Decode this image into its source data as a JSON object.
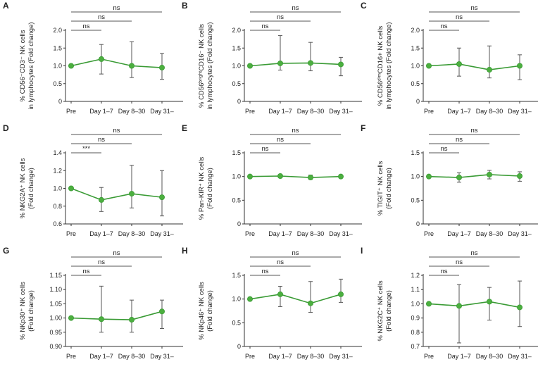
{
  "figure": {
    "categories": [
      "Pre",
      "Day 1–7",
      "Day 8–30",
      "Day 31–"
    ],
    "line_color": "#3a9b35",
    "marker_color": "#4caf3f",
    "errorbar_color": "#555555",
    "bracket_color": "#555555"
  },
  "chart_data": [
    {
      "panel": "A",
      "type": "line",
      "ylabel_lines": [
        "% CD56⁻CD3⁻ NK cells",
        "in lymphocytes (Fold change)"
      ],
      "ylim": [
        0,
        2.0
      ],
      "yticks": [
        "0",
        "0.5",
        "1.0",
        "1.5",
        "2.0"
      ],
      "categories": [
        "Pre",
        "Day 1–7",
        "Day 8–30",
        "Day 31–"
      ],
      "values": [
        1.0,
        1.19,
        1.0,
        0.95
      ],
      "error_low": [
        1.0,
        0.77,
        0.67,
        0.62
      ],
      "error_high": [
        1.0,
        1.6,
        1.68,
        1.35
      ],
      "comparisons": [
        {
          "label": "ns",
          "from": 0,
          "to": 1
        },
        {
          "label": "ns",
          "from": 0,
          "to": 2
        },
        {
          "label": "ns",
          "from": 0,
          "to": 3
        }
      ]
    },
    {
      "panel": "B",
      "type": "line",
      "ylabel_lines": [
        "% CD56ᵇʳⁱᵍʰᵗCD16⁻ NK cells",
        "in lymphocytes (Fold change)"
      ],
      "ylim": [
        0,
        2.0
      ],
      "yticks": [
        "0",
        "0.5",
        "1.0",
        "1.5",
        "2.0"
      ],
      "categories": [
        "Pre",
        "Day 1–7",
        "Day 8–30",
        "Day 31–"
      ],
      "values": [
        1.0,
        1.07,
        1.08,
        1.04
      ],
      "error_low": [
        1.0,
        0.88,
        0.86,
        0.72
      ],
      "error_high": [
        1.0,
        1.85,
        1.66,
        1.24
      ],
      "comparisons": [
        {
          "label": "ns",
          "from": 0,
          "to": 1
        },
        {
          "label": "ns",
          "from": 0,
          "to": 2
        },
        {
          "label": "ns",
          "from": 0,
          "to": 3
        }
      ]
    },
    {
      "panel": "C",
      "type": "line",
      "ylabel_lines": [
        "% CD56ᵈⁱᵐCD16+ NK cells",
        "in lymphocytes (Fold change)"
      ],
      "ylim": [
        0,
        2.0
      ],
      "yticks": [
        "0",
        "0.5",
        "1.0",
        "1.5",
        "2.0"
      ],
      "categories": [
        "Pre",
        "Day 1–7",
        "Day 8–30",
        "Day 31–"
      ],
      "values": [
        1.0,
        1.05,
        0.89,
        1.0
      ],
      "error_low": [
        1.0,
        0.71,
        0.66,
        0.61
      ],
      "error_high": [
        1.0,
        1.5,
        1.56,
        1.31
      ],
      "comparisons": [
        {
          "label": "ns",
          "from": 0,
          "to": 1
        },
        {
          "label": "ns",
          "from": 0,
          "to": 2
        },
        {
          "label": "ns",
          "from": 0,
          "to": 3
        }
      ]
    },
    {
      "panel": "D",
      "type": "line",
      "ylabel_lines": [
        "% NKG2A⁺ NK cells",
        "(Fold change)"
      ],
      "ylim": [
        0.6,
        1.4
      ],
      "yticks": [
        "0.6",
        "0.8",
        "1.0",
        "1.2",
        "1.4"
      ],
      "categories": [
        "Pre",
        "Day 1–7",
        "Day 8–30",
        "Day 31–"
      ],
      "values": [
        1.0,
        0.87,
        0.94,
        0.9
      ],
      "error_low": [
        1.0,
        0.74,
        0.78,
        0.69
      ],
      "error_high": [
        1.0,
        1.01,
        1.26,
        1.2
      ],
      "comparisons": [
        {
          "label": "***",
          "from": 0,
          "to": 1
        },
        {
          "label": "ns",
          "from": 0,
          "to": 2
        },
        {
          "label": "ns",
          "from": 0,
          "to": 3
        }
      ]
    },
    {
      "panel": "E",
      "type": "line",
      "ylabel_lines": [
        "% Pan-KIR⁺ NK cells",
        "(Fold change)"
      ],
      "ylim": [
        0,
        1.5
      ],
      "yticks": [
        "0",
        "0.5",
        "1.0",
        "1.5"
      ],
      "categories": [
        "Pre",
        "Day 1–7",
        "Day 8–30",
        "Day 31–"
      ],
      "values": [
        1.0,
        1.01,
        0.98,
        1.0
      ],
      "error_low": [
        1.0,
        0.98,
        0.94,
        0.97
      ],
      "error_high": [
        1.0,
        1.03,
        1.03,
        1.02
      ],
      "comparisons": [
        {
          "label": "ns",
          "from": 0,
          "to": 1
        },
        {
          "label": "ns",
          "from": 0,
          "to": 2
        },
        {
          "label": "ns",
          "from": 0,
          "to": 3
        }
      ]
    },
    {
      "panel": "F",
      "type": "line",
      "ylabel_lines": [
        "% TIGIT⁺ NK cells",
        "(Fold change)"
      ],
      "ylim": [
        0,
        1.5
      ],
      "yticks": [
        "0",
        "0.5",
        "1.0",
        "1.5"
      ],
      "categories": [
        "Pre",
        "Day 1–7",
        "Day 8–30",
        "Day 31–"
      ],
      "values": [
        1.0,
        0.98,
        1.04,
        1.01
      ],
      "error_low": [
        1.0,
        0.88,
        0.95,
        0.9
      ],
      "error_high": [
        1.0,
        1.08,
        1.13,
        1.1
      ],
      "comparisons": [
        {
          "label": "ns",
          "from": 0,
          "to": 1
        },
        {
          "label": "ns",
          "from": 0,
          "to": 2
        },
        {
          "label": "ns",
          "from": 0,
          "to": 3
        }
      ]
    },
    {
      "panel": "G",
      "type": "line",
      "ylabel_lines": [
        "% NKp30⁺ NK cells",
        "(Fold change)"
      ],
      "ylim": [
        0.9,
        1.15
      ],
      "yticks": [
        "0.90",
        "0.95",
        "1.00",
        "1.05",
        "1.10",
        "1.15"
      ],
      "categories": [
        "Pre",
        "Day 1–7",
        "Day 8–30",
        "Day 31–"
      ],
      "values": [
        1.0,
        0.996,
        0.994,
        1.023
      ],
      "error_low": [
        1.0,
        0.95,
        0.95,
        0.963
      ],
      "error_high": [
        1.0,
        1.112,
        1.063,
        1.063
      ],
      "comparisons": [
        {
          "label": "ns",
          "from": 0,
          "to": 1
        },
        {
          "label": "ns",
          "from": 0,
          "to": 2
        },
        {
          "label": "ns",
          "from": 0,
          "to": 3
        }
      ]
    },
    {
      "panel": "H",
      "type": "line",
      "ylabel_lines": [
        "% NKp46⁺ NK cells",
        "(Fold change)"
      ],
      "ylim": [
        0,
        1.5
      ],
      "yticks": [
        "0",
        "0.5",
        "1.0",
        "1.5"
      ],
      "categories": [
        "Pre",
        "Day 1–7",
        "Day 8–30",
        "Day 31–"
      ],
      "values": [
        1.0,
        1.1,
        0.91,
        1.1
      ],
      "error_low": [
        1.0,
        0.84,
        0.72,
        0.93
      ],
      "error_high": [
        1.0,
        1.27,
        1.37,
        1.42
      ],
      "comparisons": [
        {
          "label": "ns",
          "from": 0,
          "to": 1
        },
        {
          "label": "ns",
          "from": 0,
          "to": 2
        },
        {
          "label": "ns",
          "from": 0,
          "to": 3
        }
      ]
    },
    {
      "panel": "I",
      "type": "line",
      "ylabel_lines": [
        "% NKG2C⁺ NK cells",
        "(Fold change)"
      ],
      "ylim": [
        0.7,
        1.2
      ],
      "yticks": [
        "0.7",
        "0.8",
        "0.9",
        "1.0",
        "1.1",
        "1.2"
      ],
      "categories": [
        "Pre",
        "Day 1–7",
        "Day 8–30",
        "Day 31–"
      ],
      "values": [
        1.0,
        0.985,
        1.015,
        0.975
      ],
      "error_low": [
        1.0,
        0.725,
        0.885,
        0.84
      ],
      "error_high": [
        1.0,
        1.135,
        1.115,
        1.16
      ],
      "comparisons": [
        {
          "label": "ns",
          "from": 0,
          "to": 1
        },
        {
          "label": "ns",
          "from": 0,
          "to": 2
        },
        {
          "label": "ns",
          "from": 0,
          "to": 3
        }
      ]
    }
  ]
}
